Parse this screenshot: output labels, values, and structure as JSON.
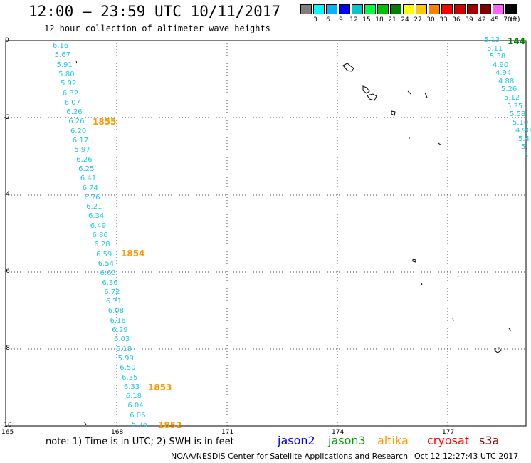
{
  "header": {
    "title": "12:00 — 23:59 UTC 10/11/2017",
    "subtitle": "12 hour collection of altimeter wave heights"
  },
  "legend": {
    "unit_label": "(ft)",
    "bins": [
      {
        "label": "",
        "color": "#7f7f7f"
      },
      {
        "label": "3",
        "color": "#00ffff"
      },
      {
        "label": "6",
        "color": "#00b4ff"
      },
      {
        "label": "9",
        "color": "#0000ff"
      },
      {
        "label": "12",
        "color": "#00c8c8"
      },
      {
        "label": "15",
        "color": "#00ff40"
      },
      {
        "label": "18",
        "color": "#00c000"
      },
      {
        "label": "21",
        "color": "#008000"
      },
      {
        "label": "24",
        "color": "#ffff00"
      },
      {
        "label": "27",
        "color": "#ffc800"
      },
      {
        "label": "30",
        "color": "#ff8000"
      },
      {
        "label": "33",
        "color": "#ff0000"
      },
      {
        "label": "36",
        "color": "#d00000"
      },
      {
        "label": "39",
        "color": "#a00000"
      },
      {
        "label": "42",
        "color": "#800000"
      },
      {
        "label": "45",
        "color": "#ff60ff"
      },
      {
        "label": "70",
        "color": "#000000"
      }
    ]
  },
  "axes": {
    "lat_labels": [
      "0",
      "-2",
      "-4",
      "-6",
      "-8",
      "-10"
    ],
    "lon_labels": [
      "165",
      "168",
      "171",
      "174",
      "177"
    ]
  },
  "track_west": {
    "values": [
      "6.16",
      "5.67",
      "5.91",
      "5.80",
      "5.92",
      "6.32",
      "6.07",
      "6.26",
      "6.26",
      "6.20",
      "6.17",
      "5.97",
      "6.26",
      "6.25",
      "6.41",
      "6.74",
      "6.76",
      "6.21",
      "6.34",
      "6.49",
      "6.86",
      "6.28",
      "6.59",
      "6.54",
      "6.60",
      "6.36",
      "6.72",
      "6.71",
      "6.08",
      "6.16",
      "6.29",
      "6.03",
      "6.18",
      "5.99",
      "6.50",
      "6.35",
      "6.33",
      "6.18",
      "6.04",
      "6.06",
      "5.76"
    ],
    "times": [
      "1855",
      "1854",
      "1853",
      "1852"
    ]
  },
  "track_east": {
    "values": [
      "5.13",
      "5.11",
      "5.38",
      "4.90",
      "4.94",
      "4.88",
      "5.26",
      "5.12",
      "5.35",
      "5.58",
      "5.10",
      "4.90",
      "5.4",
      "5.",
      "5"
    ],
    "time": "144"
  },
  "footer": {
    "note": "note:  1) Time is in UTC;  2) SWH is in feet",
    "satellites": [
      {
        "name": "jason2",
        "color": "#0000ff"
      },
      {
        "name": "jason3",
        "color": "#00a000"
      },
      {
        "name": "altika",
        "color": "#ff9900"
      },
      {
        "name": "cryosat",
        "color": "#ff0000"
      },
      {
        "name": "s3a",
        "color": "#8b0000"
      }
    ],
    "credit": "NOAA/NESDIS Center for Satellite Applications and Research",
    "timestamp": "Oct 12 12:27:43 UTC 2017"
  }
}
